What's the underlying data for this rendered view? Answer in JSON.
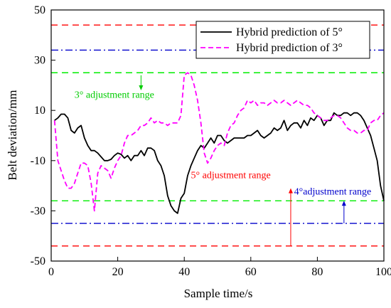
{
  "chart_data": {
    "type": "line",
    "xlabel": "Sample time/s",
    "ylabel": "Belt deviation/mm",
    "xlim": [
      0,
      100
    ],
    "ylim": [
      -50,
      50
    ],
    "x_ticks": [
      0,
      20,
      40,
      60,
      80,
      100
    ],
    "y_ticks": [
      -50,
      -30,
      -10,
      10,
      30,
      50
    ],
    "grid": false,
    "legend_position": "top-right",
    "series": [
      {
        "name": "Hybrid prediction of 5°",
        "color": "#000000",
        "dash": "solid",
        "x": [
          1,
          2,
          3,
          4,
          5,
          6,
          7,
          8,
          9,
          10,
          11,
          12,
          13,
          14,
          15,
          16,
          17,
          18,
          19,
          20,
          21,
          22,
          23,
          24,
          25,
          26,
          27,
          28,
          29,
          30,
          31,
          32,
          33,
          34,
          35,
          36,
          37,
          38,
          39,
          40,
          41,
          42,
          43,
          44,
          45,
          46,
          47,
          48,
          49,
          50,
          51,
          52,
          53,
          54,
          55,
          56,
          57,
          58,
          59,
          60,
          61,
          62,
          63,
          64,
          65,
          66,
          67,
          68,
          69,
          70,
          71,
          72,
          73,
          74,
          75,
          76,
          77,
          78,
          79,
          80,
          81,
          82,
          83,
          84,
          85,
          86,
          87,
          88,
          89,
          90,
          91,
          92,
          93,
          94,
          95,
          96,
          97,
          98,
          99,
          100
        ],
        "y": [
          6,
          7,
          8.5,
          8.5,
          7,
          2,
          1,
          3,
          4,
          -1,
          -4,
          -6,
          -6,
          -7,
          -8.5,
          -10,
          -10,
          -9.5,
          -8,
          -7,
          -7.5,
          -9,
          -8,
          -10,
          -8,
          -8,
          -6,
          -8,
          -5,
          -5,
          -6,
          -10,
          -12,
          -16,
          -24,
          -28,
          -30,
          -31,
          -25,
          -23,
          -16,
          -12,
          -9,
          -6,
          -4,
          -5,
          -3,
          -1,
          -3,
          0,
          0,
          -2,
          -3,
          -2,
          -1,
          -1,
          -1,
          -1,
          0,
          0,
          1,
          2,
          0,
          -1,
          0,
          1,
          3,
          2,
          3,
          6,
          2,
          4,
          5,
          5,
          3,
          6,
          4,
          7,
          6,
          8,
          7,
          4,
          6,
          6,
          9,
          8,
          8,
          9,
          9,
          8,
          9,
          9,
          8,
          6,
          3,
          0,
          -5,
          -10,
          -20,
          -26
        ]
      },
      {
        "name": "Hybrid prediction of 3°",
        "color": "#ff00ff",
        "dash": "dashed",
        "x": [
          1,
          2,
          3,
          4,
          5,
          6,
          7,
          8,
          9,
          10,
          11,
          12,
          13,
          14,
          15,
          16,
          17,
          18,
          19,
          20,
          21,
          22,
          23,
          24,
          25,
          26,
          27,
          28,
          29,
          30,
          31,
          32,
          33,
          34,
          35,
          36,
          37,
          38,
          39,
          40,
          41,
          42,
          43,
          44,
          45,
          46,
          47,
          48,
          49,
          50,
          51,
          52,
          53,
          54,
          55,
          56,
          57,
          58,
          59,
          60,
          61,
          62,
          63,
          64,
          65,
          66,
          67,
          68,
          69,
          70,
          71,
          72,
          73,
          74,
          75,
          76,
          77,
          78,
          79,
          80,
          81,
          82,
          83,
          84,
          85,
          86,
          87,
          88,
          89,
          90,
          91,
          92,
          93,
          94,
          95,
          96,
          97,
          98,
          99,
          100
        ],
        "y": [
          6,
          -10,
          -14,
          -18,
          -21,
          -21,
          -19,
          -15,
          -11,
          -11,
          -12,
          -19,
          -30,
          -15,
          -12,
          -13,
          -14,
          -17,
          -13,
          -10,
          -8,
          -3,
          0,
          0,
          1,
          2,
          4,
          4,
          5,
          7,
          5,
          6,
          5,
          5,
          4,
          5,
          5,
          5,
          8,
          24,
          25,
          24,
          20,
          14,
          5,
          -7,
          -11,
          -9,
          -6,
          -4,
          -3,
          -4,
          1,
          4,
          5,
          8,
          10,
          11,
          14,
          13,
          14,
          12,
          13,
          13,
          12,
          13,
          14,
          13,
          13,
          14,
          13,
          12,
          13,
          14,
          13,
          12,
          12,
          11,
          9,
          8,
          7,
          6,
          6,
          7,
          8,
          8,
          7,
          5,
          3,
          2,
          2,
          1,
          1,
          2,
          2,
          5,
          6,
          6,
          8,
          9
        ]
      }
    ],
    "reference_lines": [
      {
        "y": 44,
        "color": "#ff0000",
        "style": "dashed"
      },
      {
        "y": -44,
        "color": "#ff0000",
        "style": "dashed"
      },
      {
        "y": 34,
        "color": "#0000cc",
        "style": "dashdot"
      },
      {
        "y": -35,
        "color": "#0000cc",
        "style": "dashdot"
      },
      {
        "y": 25,
        "color": "#00ee00",
        "style": "dashed"
      },
      {
        "y": -26,
        "color": "#00ee00",
        "style": "dashed"
      }
    ],
    "annotations": [
      {
        "text": "3° adjustment range",
        "color": "#00cc00",
        "x": 7,
        "y": 15,
        "arrow_x": 27,
        "arrow_from": 24,
        "arrow_to": 18
      },
      {
        "text": "5° adjustment range",
        "color": "#ff0000",
        "x": 42,
        "y": -17,
        "arrow_x": 72,
        "arrow_from": -44,
        "arrow_to": -21
      },
      {
        "text": "4°adjustment range",
        "color": "#0000cc",
        "x": 73,
        "y": -23.5,
        "arrow_x": 88,
        "arrow_from": -35,
        "arrow_to": -26
      }
    ]
  }
}
